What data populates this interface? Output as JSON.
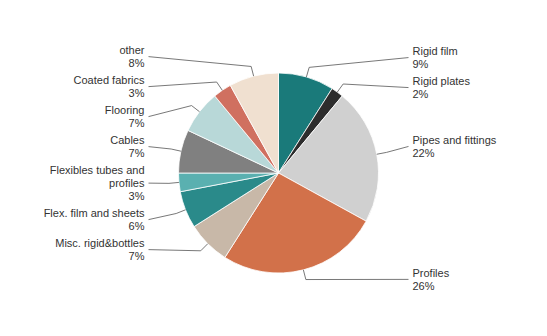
{
  "chart_data": {
    "type": "pie",
    "categories": [
      "Rigid film",
      "Rigid plates",
      "Pipes and fittings",
      "Profiles",
      "Misc. rigid&bottles",
      "Flex. film and sheets",
      "Flexibles tubes and\nprofiles",
      "Cables",
      "Flooring",
      "Coated fabrics",
      "other"
    ],
    "values": [
      9,
      2,
      22,
      26,
      7,
      6,
      3,
      7,
      7,
      3,
      8
    ],
    "value_labels": [
      "9%",
      "2%",
      "22%",
      "26%",
      "7%",
      "6%",
      "3%",
      "7%",
      "7%",
      "3%",
      "8%"
    ],
    "colors": [
      "#1a7a7a",
      "#2d2d2d",
      "#d0d0d0",
      "#d2714a",
      "#c8b8a8",
      "#2a8a8a",
      "#5ab0b0",
      "#808080",
      "#b8d8d8",
      "#d07060",
      "#f0e0d0"
    ],
    "data_labels": true
  }
}
